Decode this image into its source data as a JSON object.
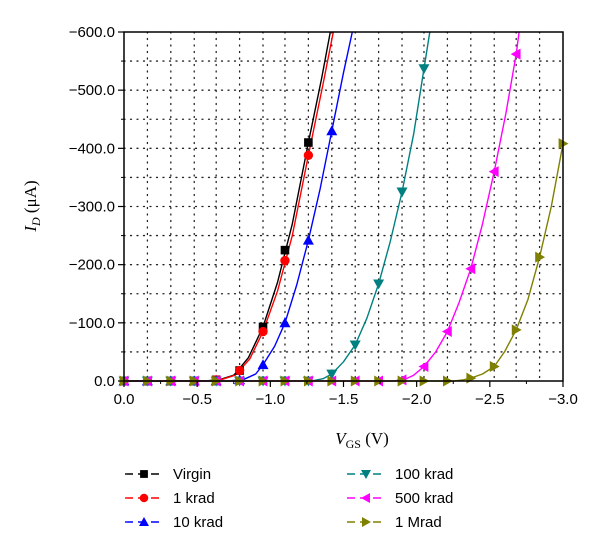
{
  "chart_data": {
    "type": "line",
    "xlabel": {
      "main": "V",
      "sub": "GS",
      "unit": " (V)"
    },
    "ylabel": {
      "main": "I",
      "sub": "D",
      "unit": " (μA)"
    },
    "xlim": [
      0,
      -3.0
    ],
    "ylim": [
      0,
      -600
    ],
    "x_ticks": [
      0.0,
      -0.5,
      -1.0,
      -1.5,
      -2.0,
      -2.5,
      -3.0
    ],
    "x_tick_labels": [
      "0.0",
      "−0.5",
      "−1.0",
      "−1.5",
      "−2.0",
      "−2.5",
      "−3.0"
    ],
    "y_ticks": [
      0,
      -100,
      -200,
      -300,
      -400,
      -500,
      -600
    ],
    "y_tick_labels": [
      "0.0",
      "−100.0",
      "−200.0",
      "−300.0",
      "−400.0",
      "−500.0",
      "−600.0"
    ],
    "grid": true,
    "legend_position": "bottom",
    "x_sample_points": [
      0.0,
      -0.16,
      -0.32,
      -0.48,
      -0.63,
      -0.79,
      -0.95,
      -1.1,
      -1.26,
      -1.42,
      -1.58,
      -1.74,
      -1.9,
      -2.05,
      -2.21,
      -2.37,
      -2.53,
      -2.68,
      -2.84,
      -3.0
    ],
    "series": [
      {
        "name": "Virgin",
        "color": "#000000",
        "marker": "square",
        "points": [
          [
            0.0,
            0
          ],
          [
            -0.16,
            0
          ],
          [
            -0.32,
            0
          ],
          [
            -0.48,
            0
          ],
          [
            -0.63,
            -2
          ],
          [
            -0.79,
            -18
          ],
          [
            -0.95,
            -93
          ],
          [
            -1.1,
            -225
          ],
          [
            -1.26,
            -410
          ]
        ],
        "curve": [
          [
            0.0,
            0
          ],
          [
            -0.55,
            0
          ],
          [
            -0.65,
            -2
          ],
          [
            -0.75,
            -10
          ],
          [
            -0.85,
            -40
          ],
          [
            -0.95,
            -93
          ],
          [
            -1.05,
            -170
          ],
          [
            -1.15,
            -270
          ],
          [
            -1.26,
            -410
          ],
          [
            -1.35,
            -520
          ],
          [
            -1.41,
            -600
          ]
        ]
      },
      {
        "name": "1 krad",
        "color": "#ff0000",
        "marker": "circle",
        "points": [
          [
            0.0,
            0
          ],
          [
            -0.16,
            0
          ],
          [
            -0.32,
            0
          ],
          [
            -0.48,
            0
          ],
          [
            -0.63,
            -2
          ],
          [
            -0.79,
            -18
          ],
          [
            -0.95,
            -85
          ],
          [
            -1.1,
            -207
          ],
          [
            -1.26,
            -388
          ]
        ],
        "curve": [
          [
            0.0,
            0
          ],
          [
            -0.56,
            0
          ],
          [
            -0.66,
            -2
          ],
          [
            -0.76,
            -10
          ],
          [
            -0.86,
            -38
          ],
          [
            -0.95,
            -85
          ],
          [
            -1.05,
            -155
          ],
          [
            -1.15,
            -250
          ],
          [
            -1.26,
            -388
          ],
          [
            -1.36,
            -510
          ],
          [
            -1.43,
            -600
          ]
        ]
      },
      {
        "name": "10 krad",
        "color": "#0000ff",
        "marker": "triangle-up",
        "points": [
          [
            0.0,
            0
          ],
          [
            -0.16,
            0
          ],
          [
            -0.32,
            0
          ],
          [
            -0.48,
            0
          ],
          [
            -0.63,
            0
          ],
          [
            -0.79,
            -2
          ],
          [
            -0.95,
            -28
          ],
          [
            -1.1,
            -100
          ],
          [
            -1.26,
            -242
          ],
          [
            -1.42,
            -430
          ]
        ],
        "curve": [
          [
            0.0,
            0
          ],
          [
            -0.72,
            0
          ],
          [
            -0.82,
            -3
          ],
          [
            -0.9,
            -12
          ],
          [
            -0.95,
            -28
          ],
          [
            -1.03,
            -60
          ],
          [
            -1.1,
            -100
          ],
          [
            -1.18,
            -165
          ],
          [
            -1.26,
            -242
          ],
          [
            -1.34,
            -330
          ],
          [
            -1.42,
            -430
          ],
          [
            -1.5,
            -530
          ],
          [
            -1.56,
            -600
          ]
        ]
      },
      {
        "name": "100 krad",
        "color": "#008080",
        "marker": "triangle-down",
        "points": [
          [
            0.0,
            0
          ],
          [
            -0.16,
            0
          ],
          [
            -0.32,
            0
          ],
          [
            -0.48,
            0
          ],
          [
            -0.63,
            0
          ],
          [
            -0.79,
            0
          ],
          [
            -0.95,
            0
          ],
          [
            -1.1,
            0
          ],
          [
            -1.26,
            0
          ],
          [
            -1.42,
            -12
          ],
          [
            -1.58,
            -62
          ],
          [
            -1.74,
            -167
          ],
          [
            -1.9,
            -325
          ],
          [
            -2.05,
            -537
          ]
        ],
        "curve": [
          [
            0.0,
            0
          ],
          [
            -1.28,
            0
          ],
          [
            -1.36,
            -4
          ],
          [
            -1.42,
            -12
          ],
          [
            -1.5,
            -33
          ],
          [
            -1.58,
            -62
          ],
          [
            -1.66,
            -108
          ],
          [
            -1.74,
            -167
          ],
          [
            -1.82,
            -240
          ],
          [
            -1.9,
            -325
          ],
          [
            -1.98,
            -425
          ],
          [
            -2.05,
            -537
          ],
          [
            -2.09,
            -600
          ]
        ]
      },
      {
        "name": "500 krad",
        "color": "#ff00ff",
        "marker": "triangle-left",
        "points": [
          [
            0.0,
            0
          ],
          [
            -0.16,
            0
          ],
          [
            -0.32,
            0
          ],
          [
            -0.48,
            0
          ],
          [
            -0.63,
            0
          ],
          [
            -0.79,
            0
          ],
          [
            -0.95,
            0
          ],
          [
            -1.1,
            0
          ],
          [
            -1.26,
            0
          ],
          [
            -1.42,
            0
          ],
          [
            -1.58,
            0
          ],
          [
            -1.74,
            0
          ],
          [
            -1.9,
            -2
          ],
          [
            -2.05,
            -25
          ],
          [
            -2.21,
            -85
          ],
          [
            -2.37,
            -193
          ],
          [
            -2.53,
            -360
          ],
          [
            -2.68,
            -562
          ]
        ],
        "curve": [
          [
            0.0,
            0
          ],
          [
            -1.85,
            0
          ],
          [
            -1.92,
            -3
          ],
          [
            -1.98,
            -10
          ],
          [
            -2.05,
            -25
          ],
          [
            -2.13,
            -50
          ],
          [
            -2.21,
            -85
          ],
          [
            -2.29,
            -135
          ],
          [
            -2.37,
            -193
          ],
          [
            -2.45,
            -270
          ],
          [
            -2.53,
            -360
          ],
          [
            -2.61,
            -460
          ],
          [
            -2.68,
            -562
          ],
          [
            -2.7,
            -600
          ]
        ]
      },
      {
        "name": "1 Mrad",
        "color": "#808000",
        "marker": "triangle-right",
        "points": [
          [
            0.0,
            0
          ],
          [
            -0.16,
            0
          ],
          [
            -0.32,
            0
          ],
          [
            -0.48,
            0
          ],
          [
            -0.63,
            0
          ],
          [
            -0.79,
            0
          ],
          [
            -0.95,
            0
          ],
          [
            -1.1,
            0
          ],
          [
            -1.26,
            0
          ],
          [
            -1.42,
            0
          ],
          [
            -1.58,
            0
          ],
          [
            -1.74,
            0
          ],
          [
            -1.9,
            0
          ],
          [
            -2.05,
            0
          ],
          [
            -2.21,
            0
          ],
          [
            -2.37,
            -5
          ],
          [
            -2.53,
            -25
          ],
          [
            -2.68,
            -88
          ],
          [
            -2.84,
            -213
          ],
          [
            -3.0,
            -408
          ]
        ],
        "curve": [
          [
            0.0,
            0
          ],
          [
            -2.26,
            0
          ],
          [
            -2.32,
            -2
          ],
          [
            -2.37,
            -5
          ],
          [
            -2.45,
            -12
          ],
          [
            -2.53,
            -25
          ],
          [
            -2.6,
            -50
          ],
          [
            -2.68,
            -88
          ],
          [
            -2.76,
            -140
          ],
          [
            -2.84,
            -213
          ],
          [
            -2.92,
            -300
          ],
          [
            -3.0,
            -408
          ]
        ]
      }
    ]
  }
}
